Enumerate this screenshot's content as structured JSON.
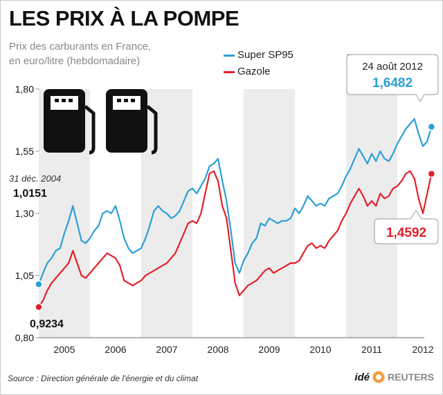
{
  "chart_data": {
    "type": "line",
    "title": "LES PRIX À LA POMPE",
    "subtitle": [
      "Prix des carburants en France,",
      "en euro/litre (hebdomadaire)"
    ],
    "ylim": [
      0.8,
      1.8
    ],
    "yticks": [
      "0,80",
      "1,05",
      "1,30",
      "1,55",
      "1,80"
    ],
    "ytick_values": [
      0.8,
      1.05,
      1.3,
      1.55,
      1.8
    ],
    "xticks": [
      "2005",
      "2006",
      "2007",
      "2008",
      "2009",
      "2010",
      "2011",
      "2012"
    ],
    "x_start_year": 2005,
    "x_step": "month",
    "series": [
      {
        "name": "Super SP95",
        "color": "#2a9fd6",
        "values": [
          1.015,
          1.06,
          1.1,
          1.12,
          1.15,
          1.16,
          1.22,
          1.27,
          1.33,
          1.26,
          1.19,
          1.18,
          1.2,
          1.23,
          1.25,
          1.3,
          1.31,
          1.3,
          1.33,
          1.27,
          1.2,
          1.16,
          1.14,
          1.15,
          1.16,
          1.2,
          1.25,
          1.31,
          1.33,
          1.31,
          1.3,
          1.28,
          1.29,
          1.31,
          1.35,
          1.39,
          1.4,
          1.38,
          1.41,
          1.44,
          1.49,
          1.5,
          1.52,
          1.43,
          1.35,
          1.23,
          1.1,
          1.06,
          1.11,
          1.14,
          1.18,
          1.2,
          1.26,
          1.25,
          1.28,
          1.27,
          1.26,
          1.27,
          1.27,
          1.28,
          1.32,
          1.3,
          1.33,
          1.37,
          1.35,
          1.33,
          1.34,
          1.33,
          1.36,
          1.37,
          1.38,
          1.41,
          1.45,
          1.48,
          1.52,
          1.56,
          1.53,
          1.5,
          1.54,
          1.51,
          1.55,
          1.52,
          1.51,
          1.54,
          1.58,
          1.61,
          1.64,
          1.66,
          1.68,
          1.62,
          1.57,
          1.59,
          1.6482
        ]
      },
      {
        "name": "Gazole",
        "color": "#e3202a",
        "values": [
          0.9234,
          0.95,
          0.99,
          1.02,
          1.04,
          1.06,
          1.08,
          1.1,
          1.15,
          1.1,
          1.05,
          1.04,
          1.06,
          1.08,
          1.1,
          1.12,
          1.14,
          1.13,
          1.12,
          1.09,
          1.03,
          1.02,
          1.01,
          1.02,
          1.03,
          1.05,
          1.06,
          1.07,
          1.08,
          1.09,
          1.1,
          1.12,
          1.14,
          1.18,
          1.22,
          1.26,
          1.27,
          1.26,
          1.3,
          1.38,
          1.46,
          1.47,
          1.43,
          1.33,
          1.28,
          1.15,
          1.02,
          0.97,
          0.99,
          1.01,
          1.02,
          1.03,
          1.05,
          1.07,
          1.08,
          1.06,
          1.07,
          1.08,
          1.09,
          1.1,
          1.1,
          1.11,
          1.14,
          1.17,
          1.18,
          1.16,
          1.17,
          1.16,
          1.19,
          1.21,
          1.23,
          1.27,
          1.3,
          1.34,
          1.37,
          1.4,
          1.37,
          1.33,
          1.35,
          1.33,
          1.38,
          1.36,
          1.37,
          1.4,
          1.41,
          1.43,
          1.46,
          1.47,
          1.44,
          1.36,
          1.3,
          1.38,
          1.4592
        ]
      }
    ],
    "legend_position": "top-center",
    "annotations": {
      "start_date": "31 déc. 2004",
      "start_sp95": "1,0151",
      "start_gazole": "0,9234",
      "end_date": "24 août 2012",
      "end_sp95": "1,6482",
      "end_gazole": "1,4592"
    },
    "source": "Source : Direction générale de l'énergie et du climat",
    "logo": {
      "ide": "idé",
      "reuters": "REUTERS"
    }
  }
}
